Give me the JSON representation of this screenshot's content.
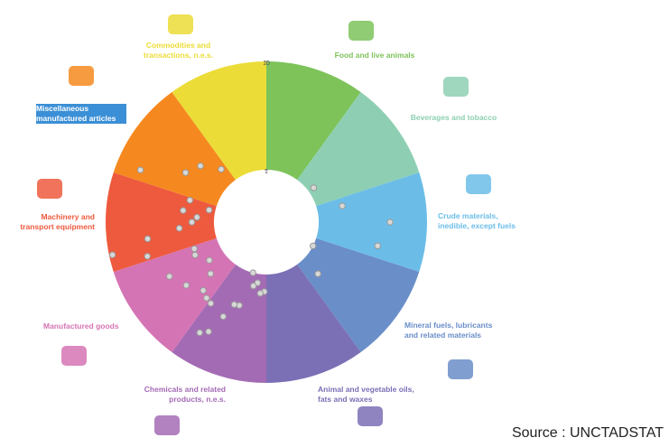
{
  "chart_data": {
    "type": "radial-scatter",
    "categories": [
      "Food and live animals",
      "Beverages and tobacco",
      "Crude materials, inedible, except fuels",
      "Mineral fuels, lubricants and related materials",
      "Animal and vegetable oils, fats and waxes",
      "Chemicals and related products, n.e.s.",
      "Manufactured goods",
      "Machinery and transport equipment",
      "Miscellaneous manufactured articles",
      "Commodities and transactions, n.e.s."
    ],
    "colors": [
      "#7dc35a",
      "#8ecfb3",
      "#6bbde8",
      "#6a8ec8",
      "#7b6fb5",
      "#a46bb5",
      "#d574b4",
      "#ee5a3e",
      "#f5891f",
      "#ebdc37"
    ],
    "values": [
      [],
      [
        1.14
      ],
      [
        1.71,
        4.56,
        3.69
      ],
      [
        1.0,
        1.55
      ],
      [],
      [
        1.44,
        1.5,
        1.21,
        1.31,
        1.0,
        2.11,
        2.15,
        2.98,
        4.56,
        5.1,
        2.66
      ],
      [
        2.56,
        2.37,
        1.65,
        2.87,
        1.41,
        3.48,
        1.74,
        1.68
      ],
      [
        4.56,
        9.3,
        4.2,
        2.1,
        1.6,
        1.44,
        1.96,
        1.14,
        1.78
      ],
      [
        5.95,
        2.46,
        2.07,
        1.44
      ],
      []
    ],
    "rlim": [
      1,
      10
    ],
    "rticks": [
      1,
      10
    ],
    "log_scale": true,
    "source": "Source : UNCTADSTAT"
  }
}
